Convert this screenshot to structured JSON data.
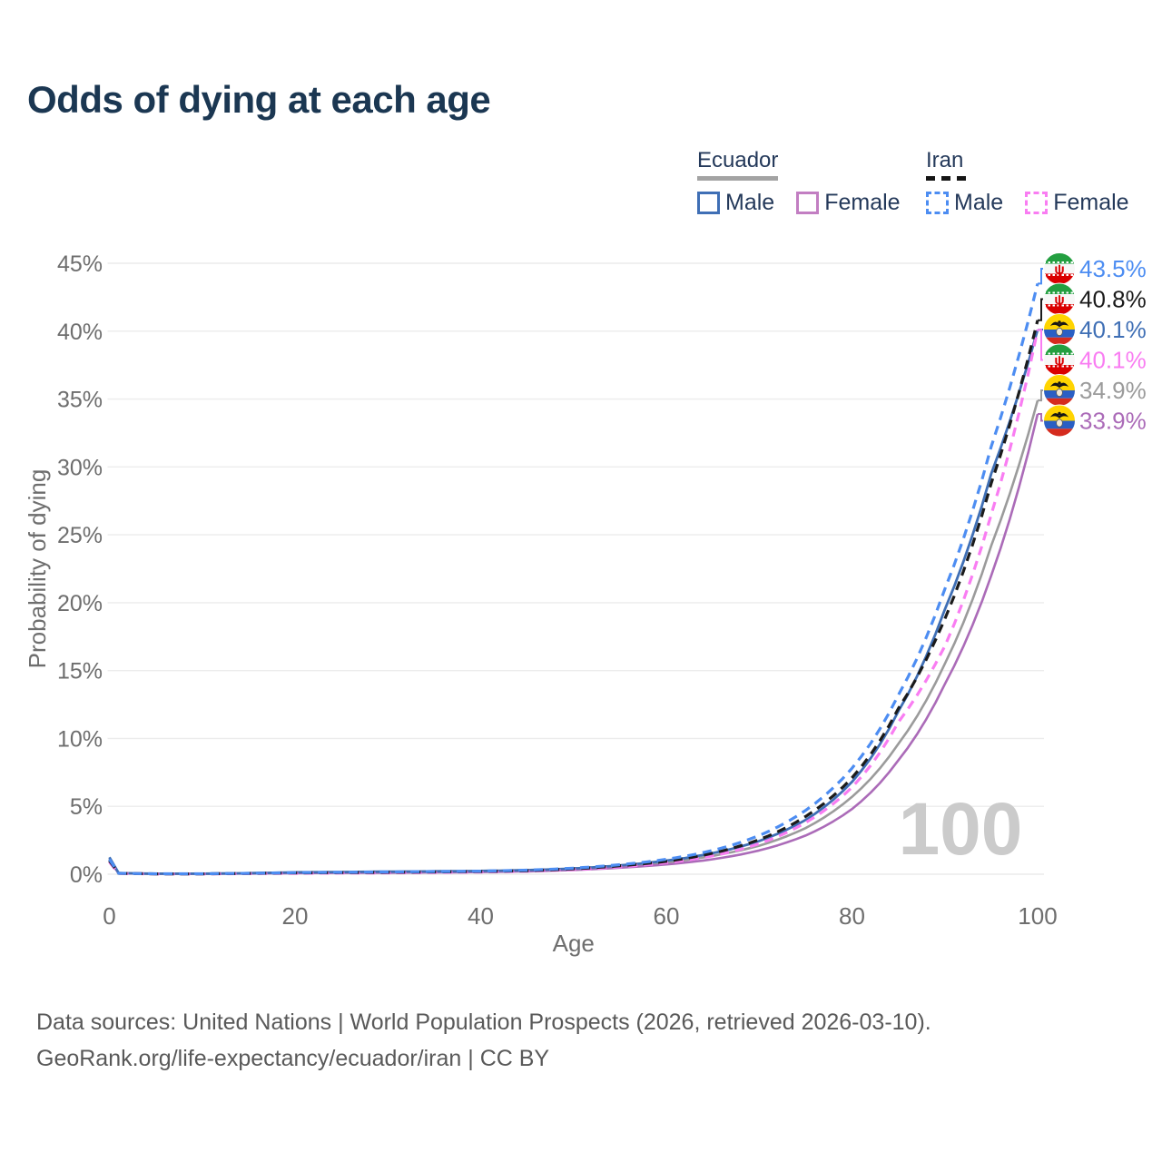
{
  "header": {
    "title": "Odds of dying at each age"
  },
  "legend": {
    "groups": [
      {
        "label": "Ecuador",
        "line": {
          "color": "#a3a3a3",
          "style": "solid"
        },
        "items": [
          {
            "label": "Male",
            "color": "#3f6fb5",
            "dashed": false
          },
          {
            "label": "Female",
            "color": "#c27ec2",
            "dashed": false
          }
        ]
      },
      {
        "label": "Iran",
        "line": {
          "color": "#151515",
          "style": "dashed"
        },
        "items": [
          {
            "label": "Male",
            "color": "#4d8df2",
            "dashed": true
          },
          {
            "label": "Female",
            "color": "#f97df2",
            "dashed": true
          }
        ]
      }
    ]
  },
  "chart_data": {
    "type": "line",
    "title": "Odds of dying at each age",
    "xlabel": "Age",
    "ylabel": "Probability of dying",
    "xlim": [
      0,
      100
    ],
    "ylim": [
      0,
      45
    ],
    "x_ticks": [
      0,
      20,
      40,
      60,
      80,
      100
    ],
    "y_ticks_percent": [
      0,
      5,
      10,
      15,
      20,
      25,
      30,
      35,
      40,
      45
    ],
    "grid": true,
    "watermark": "100",
    "series": [
      {
        "id": "ecuador-all",
        "name": "Ecuador (both sexes)",
        "country": "ecuador",
        "sex": "all",
        "style": "solid",
        "color": "#9b9b9b",
        "width": 2.6,
        "end_value": 34.9,
        "end_label": "34.9%",
        "ages": [
          0,
          1,
          5,
          10,
          15,
          20,
          30,
          40,
          45,
          50,
          55,
          60,
          65,
          70,
          75,
          80,
          85,
          90,
          95,
          100
        ],
        "values": [
          1.15,
          0.08,
          0.035,
          0.035,
          0.065,
          0.11,
          0.15,
          0.2,
          0.26,
          0.38,
          0.57,
          0.88,
          1.35,
          2.1,
          3.4,
          5.7,
          9.6,
          15.5,
          24.2,
          34.9
        ]
      },
      {
        "id": "ecuador-female",
        "name": "Ecuador — Female",
        "country": "ecuador",
        "sex": "female",
        "style": "solid",
        "color": "#ab6bb8",
        "width": 2.6,
        "end_value": 33.9,
        "end_label": "33.9%",
        "ages": [
          0,
          1,
          5,
          10,
          15,
          20,
          30,
          40,
          45,
          50,
          55,
          60,
          65,
          70,
          75,
          80,
          85,
          90,
          95,
          100
        ],
        "values": [
          1.0,
          0.07,
          0.03,
          0.03,
          0.05,
          0.08,
          0.11,
          0.16,
          0.21,
          0.31,
          0.48,
          0.72,
          1.1,
          1.75,
          2.85,
          4.8,
          8.4,
          14.0,
          22.0,
          33.9
        ]
      },
      {
        "id": "ecuador-male",
        "name": "Ecuador — Male",
        "country": "ecuador",
        "sex": "male",
        "style": "solid",
        "color": "#3f6fb5",
        "width": 2.8,
        "end_value": 40.1,
        "end_label": "40.1%",
        "ages": [
          0,
          1,
          5,
          10,
          15,
          20,
          30,
          40,
          45,
          50,
          55,
          60,
          65,
          70,
          75,
          80,
          85,
          90,
          95,
          100
        ],
        "values": [
          1.25,
          0.09,
          0.04,
          0.04,
          0.08,
          0.14,
          0.19,
          0.24,
          0.3,
          0.42,
          0.65,
          1.0,
          1.55,
          2.45,
          4.0,
          6.8,
          12.0,
          19.5,
          29.5,
          40.1
        ]
      },
      {
        "id": "iran-female",
        "name": "Iran — Female",
        "country": "iran",
        "sex": "female",
        "style": "dashed",
        "color": "#f97df2",
        "width": 3.2,
        "end_value": 40.1,
        "end_label": "40.1%",
        "ages": [
          0,
          1,
          5,
          10,
          15,
          20,
          30,
          40,
          45,
          50,
          55,
          60,
          65,
          70,
          75,
          80,
          85,
          90,
          95,
          100
        ],
        "values": [
          0.9,
          0.055,
          0.025,
          0.025,
          0.045,
          0.07,
          0.1,
          0.16,
          0.22,
          0.34,
          0.54,
          0.85,
          1.35,
          2.25,
          3.8,
          6.4,
          11.2,
          16.8,
          26.5,
          40.1
        ]
      },
      {
        "id": "iran-all",
        "name": "Iran (both sexes)",
        "country": "iran",
        "sex": "all",
        "style": "dashed",
        "color": "#1b1b1b",
        "width": 3.2,
        "end_value": 40.8,
        "end_label": "40.8%",
        "ages": [
          0,
          1,
          5,
          10,
          15,
          20,
          30,
          40,
          45,
          50,
          55,
          60,
          65,
          70,
          75,
          80,
          85,
          90,
          95,
          100
        ],
        "values": [
          1.0,
          0.065,
          0.03,
          0.03,
          0.06,
          0.1,
          0.14,
          0.2,
          0.26,
          0.4,
          0.62,
          0.95,
          1.55,
          2.55,
          4.25,
          7.1,
          12.2,
          18.8,
          28.8,
          40.8
        ]
      },
      {
        "id": "iran-male",
        "name": "Iran — Male",
        "country": "iran",
        "sex": "male",
        "style": "dashed",
        "color": "#4d8df2",
        "width": 3.2,
        "end_value": 43.5,
        "end_label": "43.5%",
        "ages": [
          0,
          1,
          5,
          10,
          15,
          20,
          30,
          40,
          45,
          50,
          55,
          60,
          65,
          70,
          75,
          80,
          85,
          90,
          95,
          100
        ],
        "values": [
          1.1,
          0.07,
          0.035,
          0.035,
          0.07,
          0.12,
          0.17,
          0.23,
          0.3,
          0.45,
          0.7,
          1.1,
          1.75,
          2.85,
          4.7,
          7.8,
          13.2,
          21.0,
          31.5,
          43.5
        ]
      }
    ],
    "end_labels": [
      {
        "series": "iran-male",
        "value": "43.5%",
        "color": "#4d8df2",
        "flag": "iran"
      },
      {
        "series": "iran-all",
        "value": "40.8%",
        "color": "#1b1b1b",
        "flag": "iran"
      },
      {
        "series": "ecuador-male",
        "value": "40.1%",
        "color": "#3f6fb5",
        "flag": "ecuador"
      },
      {
        "series": "iran-female",
        "value": "40.1%",
        "color": "#f97df2",
        "flag": "iran"
      },
      {
        "series": "ecuador-all",
        "value": "34.9%",
        "color": "#9b9b9b",
        "flag": "ecuador"
      },
      {
        "series": "ecuador-female",
        "value": "33.9%",
        "color": "#ab6bb8",
        "flag": "ecuador"
      }
    ]
  },
  "footer": {
    "line1": "Data sources: United Nations | World Population Prospects (2026, retrieved 2026-03-10).",
    "line2": "GeoRank.org/life-expectancy/ecuador/iran | CC BY"
  }
}
